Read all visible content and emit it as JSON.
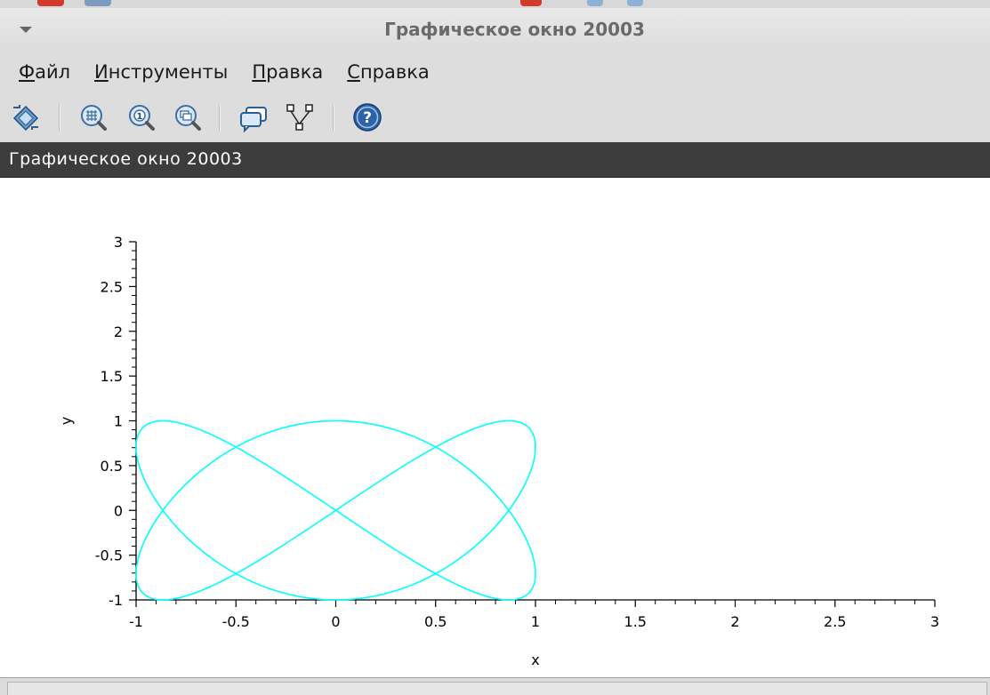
{
  "window": {
    "title": "Графическое окно 20003"
  },
  "menu": [
    {
      "access": "Ф",
      "rest": "айл"
    },
    {
      "access": "И",
      "rest": "нструменты"
    },
    {
      "access": "П",
      "rest": "равка"
    },
    {
      "access": "С",
      "rest": "правка"
    }
  ],
  "toolbar": {
    "buttons": [
      {
        "icon": "rotate-2d-3d-icon"
      },
      {
        "icon": "zoom-icon"
      },
      {
        "icon": "zoom-original-icon"
      },
      {
        "icon": "rotate-icon"
      },
      {
        "icon": "datatip-icon"
      },
      {
        "icon": "edit-datatip-icon"
      },
      {
        "icon": "help-icon"
      }
    ]
  },
  "figure": {
    "header_title": "Графическое окно 20003"
  },
  "chart_data": {
    "type": "line",
    "xlabel": "x",
    "ylabel": "y",
    "xlim": [
      -1,
      3
    ],
    "ylim": [
      -1,
      3
    ],
    "xticks": [
      "-1",
      "-0.5",
      "0",
      "0.5",
      "1",
      "1.5",
      "2",
      "2.5",
      "3"
    ],
    "yticks": [
      "-1",
      "-0.5",
      "0",
      "0.5",
      "1",
      "1.5",
      "2",
      "2.5",
      "3"
    ],
    "grid": false,
    "series": [
      {
        "color": "#00ffff",
        "curve": "lissajous",
        "x_equation": "sin(2t)",
        "y_equation": "sin(3t)",
        "t_range": [
          0,
          6.2832
        ]
      }
    ]
  },
  "colors": {
    "plot_line": "#00ffff",
    "figure_band": "#3c3c3c",
    "chrome": "#dddddd"
  }
}
